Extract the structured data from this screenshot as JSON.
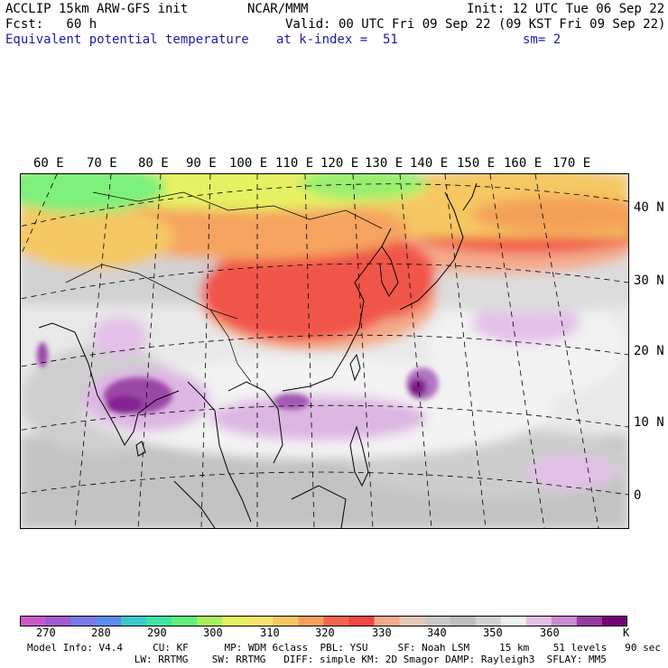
{
  "header": {
    "line1_left": "ACCLIP 15km ARW-GFS init",
    "line1_center": "NCAR/MMM",
    "line1_right": "Init: 12 UTC Tue 06 Sep 22",
    "line2_left": "Fcst:   60 h",
    "line2_right": "Valid: 00 UTC Fri 09 Sep 22 (09 KST Fri 09 Sep 22)",
    "line3_left": "Equivalent potential temperature",
    "line3_center": "at k-index =  51",
    "line3_right": "sm= 2"
  },
  "map": {
    "lon_labels": [
      "60 E",
      "70 E",
      "80 E",
      "90 E",
      "100 E",
      "110 E",
      "120 E",
      "130 E",
      "140 E",
      "150 E",
      "160 E",
      "170 E"
    ],
    "lat_labels": [
      "40 N",
      "30 N",
      "20 N",
      "10 N",
      "0"
    ]
  },
  "colorbar": {
    "colors": [
      "#c85ac8",
      "#a05ad2",
      "#7878e6",
      "#5a8cf0",
      "#3cc8c8",
      "#3ce6a0",
      "#64f078",
      "#aaf064",
      "#e6f064",
      "#f5e66e",
      "#f5c864",
      "#f5a05a",
      "#f56450",
      "#f04646",
      "#f5aa8c",
      "#e6c8b4",
      "#c8c8c8",
      "#bebebe",
      "#d2d2d2",
      "#f0f0f0",
      "#e6bee6",
      "#c88cd2",
      "#963ca0",
      "#780078"
    ],
    "labels": [
      "270",
      "280",
      "290",
      "300",
      "310",
      "320",
      "330",
      "340",
      "350",
      "360",
      "K"
    ]
  },
  "model_info": {
    "line1": "Model Info: V4.4     CU: KF      MP: WDM 6class  PBL: YSU     SF: Noah LSM     15 km    51 levels   90 sec",
    "line2": "              LW: RRTMG    SW: RRTMG   DIFF: simple KM: 2D Smagor DAMP: Rayleigh3  SFLAY: MM5"
  }
}
